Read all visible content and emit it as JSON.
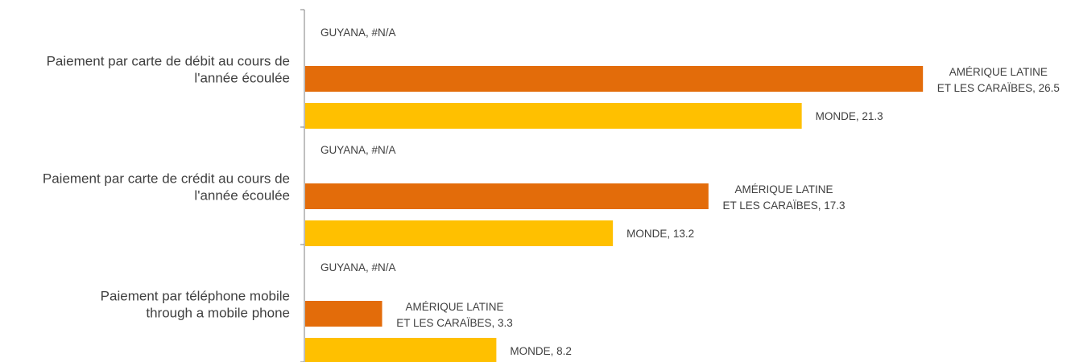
{
  "chart_data": {
    "type": "bar",
    "orientation": "horizontal",
    "categories": [
      [
        "Paiement par carte de débit au cours de",
        "l'année écoulée"
      ],
      [
        "Paiement par carte de crédit au cours de",
        "l'année écoulée"
      ],
      [
        "Paiement par téléphone mobile",
        "through a mobile phone"
      ]
    ],
    "series": [
      {
        "name": "GUYANA",
        "color": "#5b9bd5",
        "values": [
          null,
          null,
          null
        ],
        "label_values": [
          "#N/A",
          "#N/A",
          "#N/A"
        ]
      },
      {
        "name": "AMÉRIQUE LATINE ET LES CARAÏBES",
        "label_lines": [
          "AMÉRIQUE LATINE",
          "ET LES CARAÏBES"
        ],
        "color": "#e36c0a",
        "values": [
          26.5,
          17.3,
          3.3
        ]
      },
      {
        "name": "MONDE",
        "color": "#ffc000",
        "values": [
          21.3,
          13.2,
          8.2
        ]
      }
    ],
    "xlim": [
      0,
      30
    ],
    "grid": false,
    "legend": "none",
    "data_labels": true
  }
}
